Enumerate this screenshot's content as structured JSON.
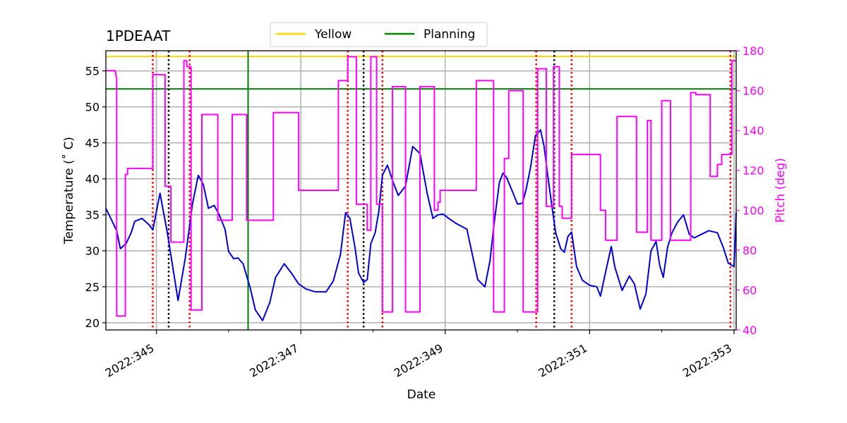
{
  "chart_data": {
    "type": "line",
    "title": "1PDEAAT",
    "xlabel": "Date",
    "ylabel": "Temperature ($^\\circ$C)",
    "ylabel_display": "Temperature (˚ C)",
    "y2label": "Pitch (deg)",
    "xlim": [
      344.3,
      353.03
    ],
    "ylim": [
      19,
      57.8
    ],
    "y2lim": [
      40,
      180
    ],
    "xticks": [
      345,
      347,
      349,
      351,
      353
    ],
    "xtick_labels": [
      "2022:345",
      "2022:347",
      "2022:349",
      "2022:351",
      "2022:353"
    ],
    "xminor_ticks": [
      346,
      348,
      350,
      352
    ],
    "yticks": [
      20,
      25,
      30,
      35,
      40,
      45,
      50,
      55
    ],
    "ytick_labels": [
      "20",
      "25",
      "30",
      "35",
      "40",
      "45",
      "50",
      "55"
    ],
    "y2ticks": [
      40,
      60,
      80,
      100,
      120,
      140,
      160,
      180
    ],
    "y2tick_labels": [
      "40",
      "60",
      "80",
      "100",
      "120",
      "140",
      "160",
      "180"
    ],
    "grid": true,
    "legend": {
      "placement": "top-center, outside",
      "entries": [
        {
          "label": "Yellow",
          "color": "#ffd700"
        },
        {
          "label": "Planning",
          "color": "#008000"
        }
      ]
    },
    "limits": [
      {
        "name": "Yellow",
        "value": 57.0,
        "color": "#ffd700"
      },
      {
        "name": "Planning",
        "value": 52.5,
        "color": "#008000"
      }
    ],
    "vertical_markers": [
      {
        "x": 346.27,
        "color": "#008000",
        "style": "solid"
      },
      {
        "x": 344.95,
        "color": "#ff0000",
        "style": "dotted"
      },
      {
        "x": 345.46,
        "color": "#ff0000",
        "style": "dotted"
      },
      {
        "x": 347.65,
        "color": "#ff0000",
        "style": "dotted"
      },
      {
        "x": 348.13,
        "color": "#ff0000",
        "style": "dotted"
      },
      {
        "x": 350.26,
        "color": "#ff0000",
        "style": "dotted"
      },
      {
        "x": 350.75,
        "color": "#ff0000",
        "style": "dotted"
      },
      {
        "x": 352.95,
        "color": "#ff0000",
        "style": "dotted"
      },
      {
        "x": 345.17,
        "color": "#000000",
        "style": "dotted"
      },
      {
        "x": 347.87,
        "color": "#000000",
        "style": "dotted"
      },
      {
        "x": 350.51,
        "color": "#000000",
        "style": "dotted"
      }
    ],
    "series": [
      {
        "name": "Temperature",
        "axis": "left",
        "color": "#0000dd",
        "x": [
          344.3,
          344.45,
          344.5,
          344.58,
          344.65,
          344.7,
          344.8,
          344.9,
          344.95,
          345.05,
          345.15,
          345.3,
          345.4,
          345.5,
          345.58,
          345.65,
          345.72,
          345.8,
          345.87,
          345.95,
          346.0,
          346.07,
          346.13,
          346.2,
          346.3,
          346.37,
          346.47,
          346.57,
          346.65,
          346.77,
          346.87,
          346.97,
          347.07,
          347.2,
          347.35,
          347.45,
          347.55,
          347.62,
          347.68,
          347.75,
          347.8,
          347.87,
          347.92,
          347.97,
          348.03,
          348.08,
          348.13,
          348.2,
          348.28,
          348.35,
          348.45,
          348.55,
          348.65,
          348.75,
          348.83,
          348.9,
          348.97,
          349.05,
          349.15,
          349.3,
          349.45,
          349.55,
          349.62,
          349.68,
          349.75,
          349.8,
          349.85,
          349.92,
          350.0,
          350.07,
          350.12,
          350.18,
          350.25,
          350.32,
          350.37,
          350.42,
          350.48,
          350.53,
          350.6,
          350.65,
          350.7,
          350.75,
          350.82,
          350.9,
          351.0,
          351.1,
          351.15,
          351.22,
          351.3,
          351.35,
          351.45,
          351.55,
          351.62,
          351.7,
          351.78,
          351.85,
          351.92,
          351.97,
          352.02,
          352.08,
          352.14,
          352.22,
          352.3,
          352.38,
          352.45,
          352.55,
          352.65,
          352.77,
          352.85,
          352.92,
          353.0,
          353.03
        ],
        "y": [
          35.9,
          32.8,
          30.3,
          31.0,
          32.5,
          34.1,
          34.5,
          33.6,
          32.9,
          38.0,
          32.6,
          23.1,
          29.0,
          36.5,
          40.5,
          39.2,
          35.9,
          36.3,
          35.0,
          33.0,
          29.9,
          28.9,
          29.0,
          28.2,
          24.8,
          21.8,
          20.3,
          22.8,
          26.3,
          28.2,
          26.9,
          25.4,
          24.7,
          24.3,
          24.3,
          25.8,
          29.5,
          35.3,
          34.5,
          30.5,
          26.9,
          25.6,
          26.0,
          31.0,
          32.5,
          35.5,
          40.5,
          41.9,
          39.5,
          37.7,
          39.0,
          44.5,
          43.5,
          38.0,
          34.5,
          35.0,
          35.1,
          34.5,
          33.8,
          33.0,
          26.0,
          25.0,
          28.6,
          34.0,
          39.5,
          40.8,
          40.2,
          38.5,
          36.5,
          36.6,
          38.5,
          41.5,
          46.0,
          46.8,
          44.5,
          40.5,
          36.0,
          32.5,
          30.3,
          29.8,
          32.0,
          32.6,
          27.8,
          25.9,
          25.2,
          25.0,
          23.7,
          27.0,
          30.6,
          27.7,
          24.5,
          26.5,
          25.4,
          21.9,
          24.0,
          30.0,
          31.3,
          28.0,
          26.3,
          30.5,
          32.5,
          34.0,
          35.0,
          32.3,
          31.8,
          32.3,
          32.8,
          32.5,
          30.5,
          28.3,
          27.8,
          35.3
        ]
      },
      {
        "name": "Pitch",
        "axis": "right",
        "color": "#ff00ff",
        "x": [
          344.3,
          344.43,
          344.45,
          344.45,
          344.57,
          344.57,
          344.6,
          344.6,
          344.95,
          344.95,
          345.12,
          345.12,
          345.2,
          345.2,
          345.38,
          345.38,
          345.42,
          345.42,
          345.48,
          345.48,
          345.63,
          345.63,
          345.85,
          345.85,
          346.05,
          346.05,
          346.25,
          346.25,
          346.62,
          346.62,
          346.97,
          346.97,
          347.52,
          347.52,
          347.65,
          347.65,
          347.77,
          347.77,
          347.92,
          347.92,
          347.97,
          347.97,
          348.05,
          348.05,
          348.13,
          348.13,
          348.27,
          348.27,
          348.45,
          348.45,
          348.65,
          348.65,
          348.85,
          348.85,
          348.9,
          348.9,
          348.93,
          348.93,
          349.43,
          349.43,
          349.67,
          349.67,
          349.82,
          349.82,
          349.88,
          349.88,
          350.08,
          350.08,
          350.28,
          350.28,
          350.4,
          350.4,
          350.5,
          350.5,
          350.58,
          350.58,
          350.62,
          350.62,
          350.75,
          350.75,
          351.15,
          351.15,
          351.22,
          351.22,
          351.38,
          351.38,
          351.65,
          351.65,
          351.8,
          351.8,
          351.85,
          351.85,
          352.0,
          352.0,
          352.12,
          352.12,
          352.4,
          352.4,
          352.47,
          352.47,
          352.67,
          352.67,
          352.77,
          352.77,
          352.83,
          352.83,
          352.97,
          352.97,
          353.03
        ],
        "y": [
          170,
          170,
          166,
          47,
          47,
          118,
          118,
          121,
          121,
          168,
          168,
          112,
          112,
          84,
          84,
          175,
          175,
          172,
          172,
          50,
          50,
          148,
          148,
          95,
          95,
          148,
          148,
          95,
          95,
          149,
          149,
          110,
          110,
          165,
          165,
          177,
          177,
          103,
          103,
          90,
          90,
          177,
          177,
          103,
          103,
          49,
          49,
          162,
          162,
          49,
          49,
          162,
          162,
          100,
          100,
          104,
          104,
          110,
          110,
          165,
          165,
          49,
          49,
          126,
          126,
          160,
          160,
          49,
          49,
          171,
          171,
          102,
          102,
          172,
          172,
          102,
          102,
          96,
          96,
          128,
          128,
          100,
          100,
          85,
          85,
          147,
          147,
          89,
          89,
          145,
          145,
          85,
          85,
          155,
          155,
          85,
          85,
          159,
          159,
          158,
          158,
          117,
          117,
          123,
          123,
          128,
          128,
          175,
          175
        ]
      }
    ]
  }
}
